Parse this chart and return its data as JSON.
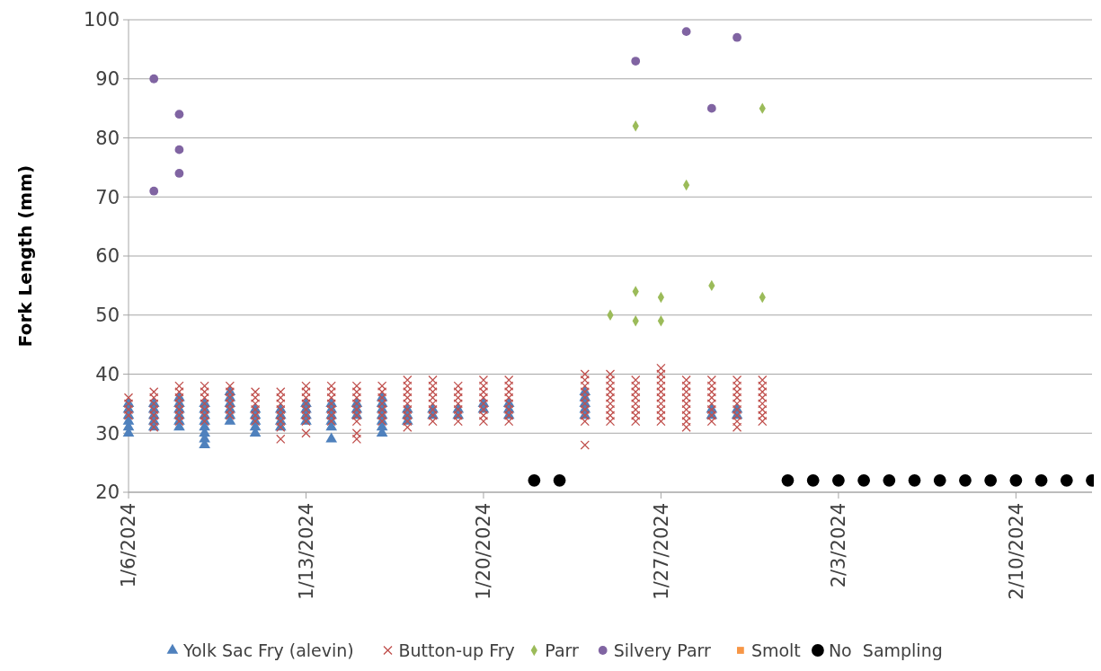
{
  "chart_data": {
    "type": "scatter",
    "ylabel": "Fork Length (mm)",
    "ylim": [
      20,
      100
    ],
    "yticks": [
      20,
      30,
      40,
      50,
      60,
      70,
      80,
      90,
      100
    ],
    "xlim": [
      "2024-01-06",
      "2024-02-13"
    ],
    "xticks": [
      {
        "value": "2024-01-06",
        "label": "1/6/2024"
      },
      {
        "value": "2024-01-13",
        "label": "1/13/2024"
      },
      {
        "value": "2024-01-20",
        "label": "1/20/2024"
      },
      {
        "value": "2024-01-27",
        "label": "1/27/2024"
      },
      {
        "value": "2024-02-03",
        "label": "2/3/2024"
      },
      {
        "value": "2024-02-10",
        "label": "2/10/2024"
      }
    ],
    "grid": "y",
    "legend": "bottom",
    "series": [
      {
        "name": "Yolk Sac Fry (alevin)",
        "color": "#4f81bd",
        "marker": "triangle",
        "x": [
          "2024-01-06",
          "2024-01-06",
          "2024-01-06",
          "2024-01-06",
          "2024-01-06",
          "2024-01-06",
          "2024-01-07",
          "2024-01-07",
          "2024-01-07",
          "2024-01-07",
          "2024-01-07",
          "2024-01-08",
          "2024-01-08",
          "2024-01-08",
          "2024-01-08",
          "2024-01-08",
          "2024-01-08",
          "2024-01-09",
          "2024-01-09",
          "2024-01-09",
          "2024-01-09",
          "2024-01-09",
          "2024-01-09",
          "2024-01-09",
          "2024-01-09",
          "2024-01-10",
          "2024-01-10",
          "2024-01-10",
          "2024-01-10",
          "2024-01-10",
          "2024-01-10",
          "2024-01-11",
          "2024-01-11",
          "2024-01-11",
          "2024-01-11",
          "2024-01-11",
          "2024-01-12",
          "2024-01-12",
          "2024-01-12",
          "2024-01-12",
          "2024-01-13",
          "2024-01-13",
          "2024-01-13",
          "2024-01-13",
          "2024-01-14",
          "2024-01-14",
          "2024-01-14",
          "2024-01-14",
          "2024-01-14",
          "2024-01-14",
          "2024-01-15",
          "2024-01-15",
          "2024-01-15",
          "2024-01-16",
          "2024-01-16",
          "2024-01-16",
          "2024-01-16",
          "2024-01-16",
          "2024-01-16",
          "2024-01-16",
          "2024-01-17",
          "2024-01-17",
          "2024-01-17",
          "2024-01-18",
          "2024-01-18",
          "2024-01-19",
          "2024-01-19",
          "2024-01-20",
          "2024-01-20",
          "2024-01-21",
          "2024-01-21",
          "2024-01-21",
          "2024-01-24",
          "2024-01-24",
          "2024-01-24",
          "2024-01-24",
          "2024-01-24",
          "2024-01-29",
          "2024-01-29",
          "2024-01-30",
          "2024-01-30"
        ],
        "values": [
          30,
          31,
          32,
          33,
          34,
          35,
          31,
          32,
          33,
          34,
          35,
          31,
          32,
          33,
          34,
          35,
          36,
          28,
          29,
          30,
          31,
          32,
          33,
          34,
          35,
          32,
          33,
          34,
          35,
          36,
          37,
          30,
          31,
          32,
          33,
          34,
          31,
          32,
          33,
          34,
          32,
          33,
          34,
          35,
          29,
          31,
          32,
          33,
          34,
          35,
          33,
          34,
          35,
          30,
          31,
          32,
          33,
          34,
          35,
          36,
          32,
          33,
          34,
          33,
          34,
          33,
          34,
          34,
          35,
          33,
          34,
          35,
          33,
          34,
          35,
          36,
          37,
          33,
          34,
          33,
          34
        ]
      },
      {
        "name": "Button-up Fry",
        "color": "#c0504d",
        "marker": "cross",
        "x": [
          "2024-01-06",
          "2024-01-06",
          "2024-01-06",
          "2024-01-06",
          "2024-01-07",
          "2024-01-07",
          "2024-01-07",
          "2024-01-07",
          "2024-01-07",
          "2024-01-07",
          "2024-01-07",
          "2024-01-08",
          "2024-01-08",
          "2024-01-08",
          "2024-01-08",
          "2024-01-08",
          "2024-01-08",
          "2024-01-08",
          "2024-01-09",
          "2024-01-09",
          "2024-01-09",
          "2024-01-09",
          "2024-01-09",
          "2024-01-09",
          "2024-01-09",
          "2024-01-10",
          "2024-01-10",
          "2024-01-10",
          "2024-01-10",
          "2024-01-10",
          "2024-01-10",
          "2024-01-11",
          "2024-01-11",
          "2024-01-11",
          "2024-01-11",
          "2024-01-11",
          "2024-01-11",
          "2024-01-12",
          "2024-01-12",
          "2024-01-12",
          "2024-01-12",
          "2024-01-12",
          "2024-01-12",
          "2024-01-12",
          "2024-01-12",
          "2024-01-13",
          "2024-01-13",
          "2024-01-13",
          "2024-01-13",
          "2024-01-13",
          "2024-01-13",
          "2024-01-13",
          "2024-01-13",
          "2024-01-14",
          "2024-01-14",
          "2024-01-14",
          "2024-01-14",
          "2024-01-14",
          "2024-01-14",
          "2024-01-14",
          "2024-01-15",
          "2024-01-15",
          "2024-01-15",
          "2024-01-15",
          "2024-01-15",
          "2024-01-15",
          "2024-01-15",
          "2024-01-15",
          "2024-01-15",
          "2024-01-16",
          "2024-01-16",
          "2024-01-16",
          "2024-01-16",
          "2024-01-16",
          "2024-01-16",
          "2024-01-16",
          "2024-01-17",
          "2024-01-17",
          "2024-01-17",
          "2024-01-17",
          "2024-01-17",
          "2024-01-17",
          "2024-01-17",
          "2024-01-17",
          "2024-01-17",
          "2024-01-18",
          "2024-01-18",
          "2024-01-18",
          "2024-01-18",
          "2024-01-18",
          "2024-01-18",
          "2024-01-18",
          "2024-01-18",
          "2024-01-19",
          "2024-01-19",
          "2024-01-19",
          "2024-01-19",
          "2024-01-19",
          "2024-01-19",
          "2024-01-19",
          "2024-01-20",
          "2024-01-20",
          "2024-01-20",
          "2024-01-20",
          "2024-01-20",
          "2024-01-20",
          "2024-01-20",
          "2024-01-20",
          "2024-01-21",
          "2024-01-21",
          "2024-01-21",
          "2024-01-21",
          "2024-01-21",
          "2024-01-21",
          "2024-01-21",
          "2024-01-21",
          "2024-01-24",
          "2024-01-24",
          "2024-01-24",
          "2024-01-24",
          "2024-01-24",
          "2024-01-24",
          "2024-01-24",
          "2024-01-24",
          "2024-01-24",
          "2024-01-24",
          "2024-01-25",
          "2024-01-25",
          "2024-01-25",
          "2024-01-25",
          "2024-01-25",
          "2024-01-25",
          "2024-01-25",
          "2024-01-25",
          "2024-01-25",
          "2024-01-26",
          "2024-01-26",
          "2024-01-26",
          "2024-01-26",
          "2024-01-26",
          "2024-01-26",
          "2024-01-26",
          "2024-01-26",
          "2024-01-27",
          "2024-01-27",
          "2024-01-27",
          "2024-01-27",
          "2024-01-27",
          "2024-01-27",
          "2024-01-27",
          "2024-01-27",
          "2024-01-27",
          "2024-01-27",
          "2024-01-28",
          "2024-01-28",
          "2024-01-28",
          "2024-01-28",
          "2024-01-28",
          "2024-01-28",
          "2024-01-28",
          "2024-01-28",
          "2024-01-28",
          "2024-01-29",
          "2024-01-29",
          "2024-01-29",
          "2024-01-29",
          "2024-01-29",
          "2024-01-29",
          "2024-01-29",
          "2024-01-29",
          "2024-01-30",
          "2024-01-30",
          "2024-01-30",
          "2024-01-30",
          "2024-01-30",
          "2024-01-30",
          "2024-01-30",
          "2024-01-30",
          "2024-01-30",
          "2024-01-31",
          "2024-01-31",
          "2024-01-31",
          "2024-01-31",
          "2024-01-31",
          "2024-01-31",
          "2024-01-31",
          "2024-01-31"
        ],
        "values": [
          33,
          34,
          35,
          36,
          31,
          32,
          33,
          34,
          35,
          36,
          37,
          32,
          33,
          34,
          35,
          36,
          37,
          38,
          32,
          33,
          34,
          35,
          36,
          37,
          38,
          33,
          34,
          35,
          36,
          37,
          38,
          32,
          33,
          34,
          35,
          36,
          37,
          29,
          31,
          32,
          33,
          34,
          35,
          36,
          37,
          30,
          32,
          33,
          34,
          35,
          36,
          37,
          38,
          32,
          33,
          34,
          35,
          36,
          37,
          38,
          29,
          30,
          32,
          33,
          34,
          35,
          36,
          37,
          38,
          32,
          33,
          34,
          35,
          36,
          37,
          38,
          31,
          32,
          33,
          34,
          35,
          36,
          37,
          38,
          39,
          32,
          33,
          34,
          35,
          36,
          37,
          38,
          39,
          32,
          33,
          34,
          35,
          36,
          37,
          38,
          32,
          33,
          34,
          35,
          36,
          37,
          38,
          39,
          32,
          33,
          34,
          35,
          36,
          37,
          38,
          39,
          28,
          32,
          33,
          34,
          35,
          36,
          37,
          38,
          39,
          40,
          32,
          33,
          34,
          35,
          36,
          37,
          38,
          39,
          40,
          32,
          33,
          34,
          35,
          36,
          37,
          38,
          39,
          32,
          33,
          34,
          35,
          36,
          37,
          38,
          39,
          40,
          41,
          31,
          32,
          33,
          34,
          35,
          36,
          37,
          38,
          39,
          32,
          33,
          34,
          35,
          36,
          37,
          38,
          39,
          31,
          32,
          33,
          34,
          35,
          36,
          37,
          38,
          39,
          32,
          33,
          34,
          35,
          36,
          37,
          38,
          39
        ]
      },
      {
        "name": "Parr",
        "color": "#9bbb59",
        "marker": "diamond",
        "x": [
          "2024-01-25",
          "2024-01-26",
          "2024-01-26",
          "2024-01-26",
          "2024-01-27",
          "2024-01-27",
          "2024-01-28",
          "2024-01-29",
          "2024-01-31",
          "2024-01-31"
        ],
        "values": [
          50,
          82,
          54,
          49,
          53,
          49,
          72,
          55,
          85,
          53
        ]
      },
      {
        "name": "Silvery Parr",
        "color": "#8064a2",
        "marker": "circle",
        "x": [
          "2024-01-07",
          "2024-01-07",
          "2024-01-08",
          "2024-01-08",
          "2024-01-08",
          "2024-01-26",
          "2024-01-28",
          "2024-01-29",
          "2024-01-30"
        ],
        "values": [
          90,
          71,
          84,
          78,
          74,
          93,
          98,
          85,
          97
        ]
      },
      {
        "name": "Smolt",
        "color": "#f79646",
        "marker": "square"
      },
      {
        "name": "No  Sampling",
        "color": "#000000",
        "marker": "circle",
        "x": [
          "2024-01-22",
          "2024-01-23",
          "2024-02-01",
          "2024-02-02",
          "2024-02-03",
          "2024-02-04",
          "2024-02-05",
          "2024-02-06",
          "2024-02-07",
          "2024-02-08",
          "2024-02-09",
          "2024-02-10",
          "2024-02-11",
          "2024-02-12",
          "2024-02-13"
        ],
        "values": [
          22,
          22,
          22,
          22,
          22,
          22,
          22,
          22,
          22,
          22,
          22,
          22,
          22,
          22,
          22
        ]
      }
    ]
  }
}
